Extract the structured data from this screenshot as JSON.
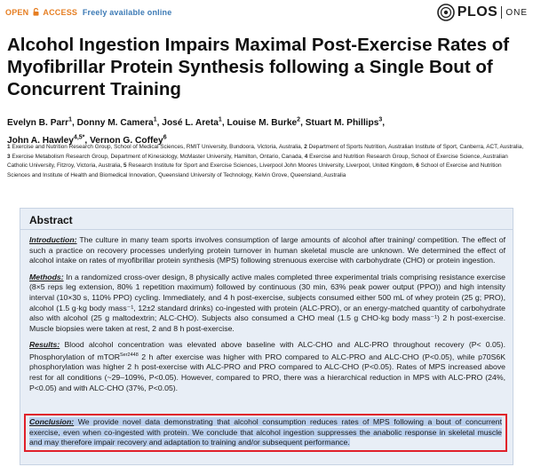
{
  "header": {
    "open": "OPEN",
    "access": "ACCESS",
    "free": "Freely available online",
    "journal": "PLOS",
    "journal_sub": "ONE"
  },
  "title": "Alcohol Ingestion Impairs Maximal Post-Exercise Rates of Myofibrillar Protein Synthesis following a Single Bout of Concurrent Training",
  "authors": [
    {
      "name": "Evelyn B. Parr",
      "sup": "1",
      "sep": ", "
    },
    {
      "name": "Donny M. Camera",
      "sup": "1",
      "sep": ", "
    },
    {
      "name": "José L. Areta",
      "sup": "1",
      "sep": ", "
    },
    {
      "name": "Louise M. Burke",
      "sup": "2",
      "sep": ", "
    },
    {
      "name": "Stuart M. Phillips",
      "sup": "3",
      "sep": ", "
    },
    {
      "name": "John A. Hawley",
      "sup": "4,5*",
      "sep": ", "
    },
    {
      "name": "Vernon G. Coffey",
      "sup": "6",
      "sep": ""
    }
  ],
  "affiliations": [
    {
      "num": "1",
      "text": "Exercise and Nutrition Research Group, School of Medical Sciences, RMIT University, Bundoora, Victoria, Australia, "
    },
    {
      "num": "2",
      "text": "Department of Sports Nutrition, Australian Institute of Sport, Canberra, ACT, Australia, "
    },
    {
      "num": "3",
      "text": "Exercise Metabolism Research Group, Department of Kinesiology, McMaster University, Hamilton, Ontario, Canada, "
    },
    {
      "num": "4",
      "text": "Exercise and Nutrition Research Group, School of Exercise Science, Australian Catholic University, Fitzroy, Victoria, Australia, "
    },
    {
      "num": "5",
      "text": "Research Institute for Sport and Exercise Sciences, Liverpool John Moores University, Liverpool, United Kingdom, "
    },
    {
      "num": "6",
      "text": "School of Exercise and Nutrition Sciences and Institute of Health and Biomedical Innovation, Queensland University of Technology, Kelvin Grove, Queensland, Australia"
    }
  ],
  "abstract": {
    "heading": "Abstract",
    "introduction_label": "Introduction:",
    "introduction": " The culture in many team sports involves consumption of large amounts of alcohol after training/ competition. The effect of such a practice on recovery processes underlying protein turnover in human skeletal muscle are unknown. We determined the effect of alcohol intake on rates of myofibrillar protein synthesis (MPS) following strenuous exercise with carbohydrate (CHO) or protein ingestion.",
    "methods_label": "Methods:",
    "methods": " In a randomized cross-over design, 8 physically active males completed three experimental trials comprising resistance exercise (8×5 reps leg extension, 80% 1 repetition maximum) followed by continuous (30 min, 63% peak power output (PPO)) and high intensity interval (10×30 s, 110% PPO) cycling. Immediately, and 4 h post-exercise, subjects consumed either 500 mL of whey protein (25 g; PRO), alcohol (1.5 g·kg body mass⁻¹, 12±2 standard drinks) co-ingested with protein (ALC-PRO), or an energy-matched quantity of carbohydrate also with alcohol (25 g maltodextrin; ALC-CHO). Subjects also consumed a CHO meal (1.5 g CHO·kg body mass⁻¹) 2 h post-exercise. Muscle biopsies were taken at rest, 2 and 8 h post-exercise.",
    "results_label": "Results:",
    "results_a": " Blood alcohol concentration was elevated above baseline with ALC-CHO and ALC-PRO throughout recovery (P< 0.05). Phosphorylation of mTOR",
    "results_sup": "Ser2448",
    "results_b": " 2 h after exercise was higher with PRO compared to ALC-PRO and ALC-CHO (P<0.05), while p70S6K phosphorylation was higher 2 h post-exercise with ALC-PRO and PRO compared to ALC-CHO (P<0.05). Rates of MPS increased above rest for all conditions (~29–109%, P<0.05). However, compared to PRO, there was a hierarchical reduction in MPS with ALC-PRO (24%, P<0.05) and with ALC-CHO (37%, P<0.05).",
    "conclusion_label": "Conclusion:",
    "conclusion": " We provide novel data demonstrating that alcohol consumption reduces rates of MPS following a bout of concurrent exercise, even when co-ingested with protein. We conclude that alcohol ingestion suppresses the anabolic response in skeletal muscle and may therefore impair recovery and adaptation to training and/or subsequent performance."
  },
  "colors": {
    "accent": "#e67e22",
    "link": "#3c7ab5",
    "abstract_bg": "#e8eef6",
    "highlight": "#b9cfee",
    "box": "#e0202a"
  }
}
